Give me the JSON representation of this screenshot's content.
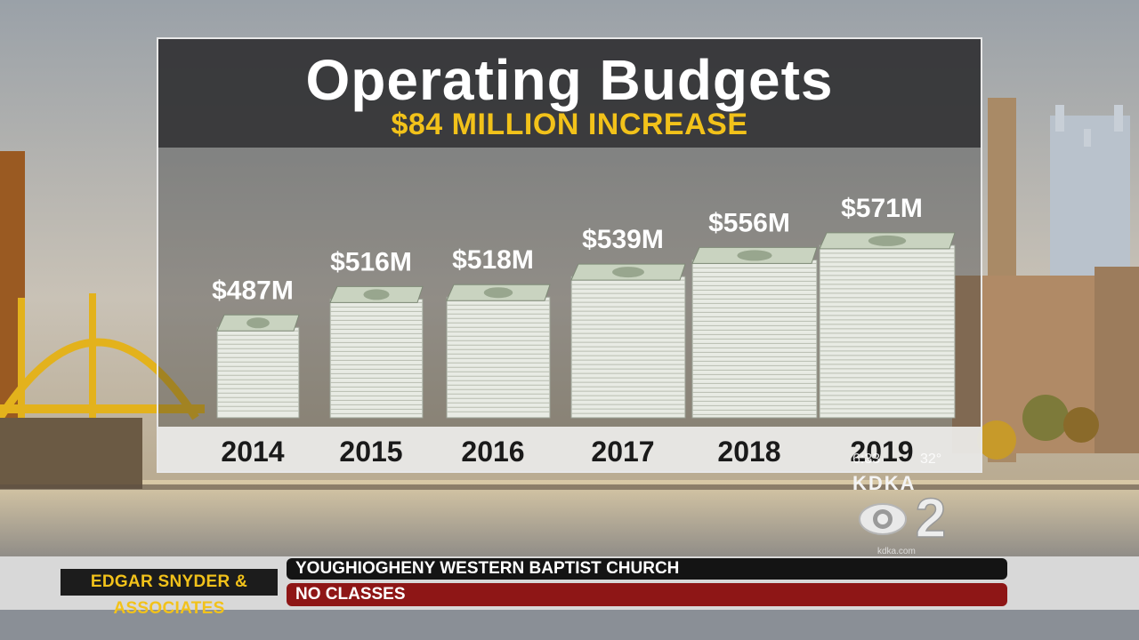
{
  "chart_data": {
    "type": "bar",
    "title": "Operating Budgets",
    "subtitle": "$84 MILLION INCREASE",
    "categories": [
      "2014",
      "2015",
      "2016",
      "2017",
      "2018",
      "2019"
    ],
    "values": [
      487,
      516,
      518,
      539,
      556,
      571
    ],
    "value_labels": [
      "$487M",
      "$516M",
      "$518M",
      "$539M",
      "$556M",
      "$571M"
    ],
    "unit": "million dollars",
    "bar_style": "stack of hundred-dollar bills",
    "colors": {
      "title": "#ffffff",
      "subtitle": "#f2c21a",
      "bills": "#c9d3c0"
    }
  },
  "overlay": {
    "station": "KDKA",
    "channel": "2",
    "time": "6:33",
    "temperature": "32°",
    "url": "kdka.com"
  },
  "ticker": {
    "sponsor": "EDGAR SNYDER & ASSOCIATES",
    "line1": "YOUGHIOGHENY WESTERN BAPTIST CHURCH",
    "line2": "NO CLASSES"
  }
}
